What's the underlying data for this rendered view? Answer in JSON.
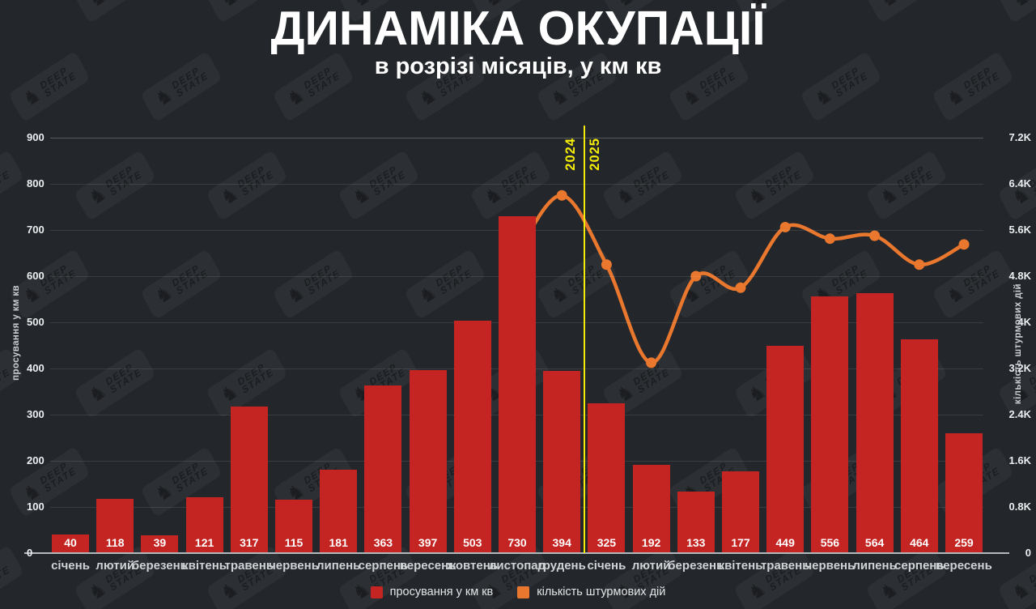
{
  "title": "ДИНАМІКА ОКУПАЦІЇ",
  "subtitle": "в розрізі місяців, у км кв",
  "watermark": {
    "knight_icon": "knight-chess-piece",
    "line1": "DEEP",
    "line2": "STATE"
  },
  "colors": {
    "background": "#23272b",
    "bar_red": "#c42522",
    "line_orange": "#ea772e",
    "divider_yellow": "#f4ec06",
    "text_white": "#ffffff"
  },
  "divider": {
    "left_year": "2024",
    "right_year": "2025"
  },
  "legend": [
    {
      "label": "просування у км кв",
      "color": "#c42522"
    },
    {
      "label": "кількість штурмових дій",
      "color": "#ea772e"
    }
  ],
  "chart_data": {
    "type": "bar+line combo",
    "title": "ДИНАМІКА ОКУПАЦІЇ",
    "subtitle": "в розрізі місяців, у км кв",
    "grid": true,
    "legend_position": "bottom",
    "categories": [
      "січень",
      "лютий",
      "березень",
      "квітень",
      "травень",
      "червень",
      "липень",
      "серпень",
      "вересень",
      "жовтень",
      "листопад",
      "грудень",
      "січень",
      "лютий",
      "березень",
      "квітень",
      "травень",
      "червень",
      "липень",
      "серпень",
      "вересень"
    ],
    "year_divider": {
      "between_categories": [
        11,
        12
      ],
      "left_label": "2024",
      "right_label": "2025"
    },
    "left_axis": {
      "label": "просування у км кв",
      "range": [
        0,
        900
      ],
      "ticks": [
        0,
        100,
        200,
        300,
        400,
        500,
        600,
        700,
        800,
        900
      ]
    },
    "right_axis": {
      "label": "кількість штурмових дій",
      "range": [
        0,
        7200
      ],
      "ticks": [
        "0",
        "0.8K",
        "1.6K",
        "2.4K",
        "3.2K",
        "4K",
        "4.8K",
        "5.6K",
        "6.4K",
        "7.2K"
      ],
      "tick_values": [
        0,
        800,
        1600,
        2400,
        3200,
        4000,
        4800,
        5600,
        6400,
        7200
      ]
    },
    "series": [
      {
        "name": "просування у км кв",
        "type": "bar",
        "axis": "left",
        "color": "#c42522",
        "values": [
          40,
          118,
          39,
          121,
          317,
          115,
          181,
          363,
          397,
          503,
          730,
          394,
          325,
          192,
          133,
          177,
          449,
          556,
          564,
          464,
          259
        ]
      },
      {
        "name": "кількість штурмових дій",
        "type": "line",
        "axis": "right",
        "color": "#ea772e",
        "values": [
          null,
          null,
          null,
          null,
          null,
          null,
          null,
          null,
          null,
          null,
          5200,
          6200,
          5000,
          3300,
          4800,
          4600,
          5650,
          5450,
          5500,
          5000,
          5350
        ],
        "note": "values estimated from right axis gridlines"
      }
    ]
  }
}
